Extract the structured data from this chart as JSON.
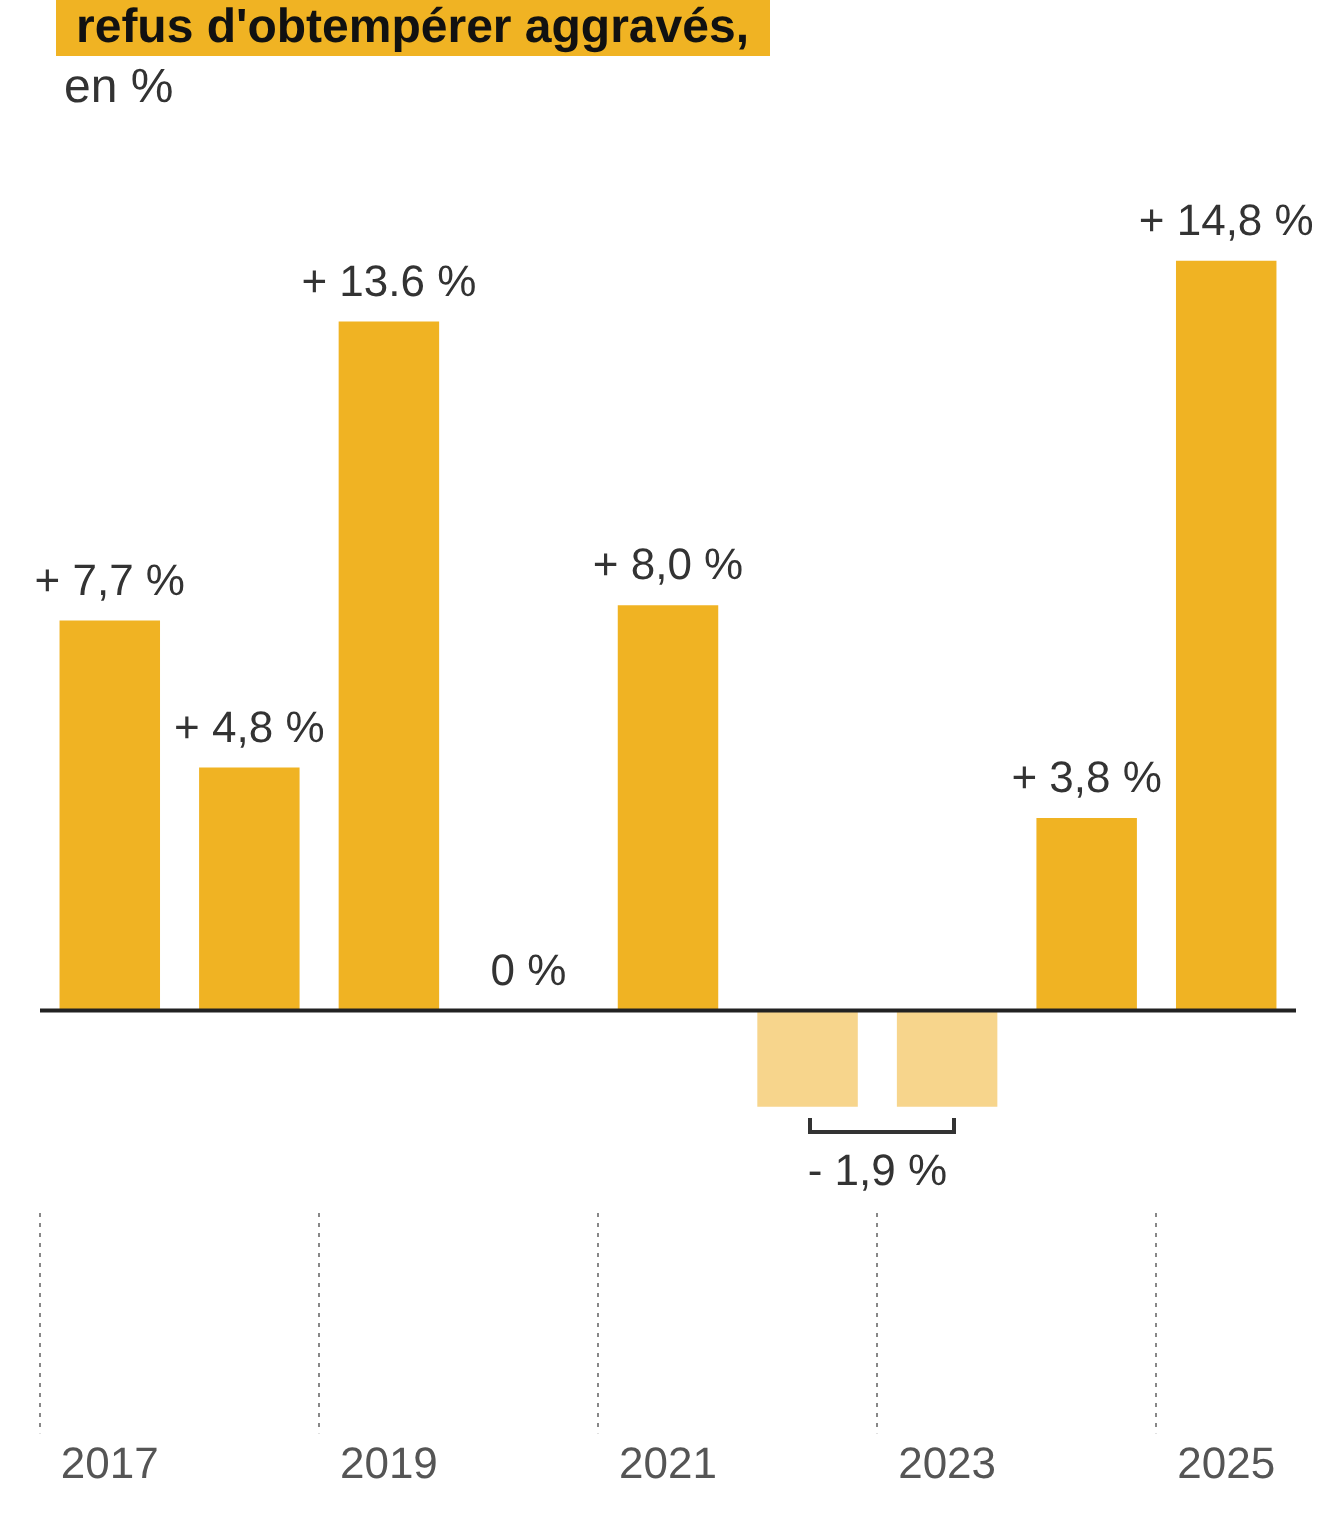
{
  "chart_data": {
    "type": "bar",
    "title": "refus d'obtempérer aggravés,",
    "subtitle": "en %",
    "categories": [
      "2017",
      null,
      "2019",
      null,
      "2021",
      null,
      "2023",
      null,
      "2025"
    ],
    "values": [
      7.7,
      4.8,
      13.6,
      0,
      8.0,
      -1.9,
      -1.9,
      3.8,
      14.8
    ],
    "colors": [
      "#f0b323",
      "#f0b323",
      "#f0b323",
      "#f0b323",
      "#f0b323",
      "#f7d58c",
      "#f7d58c",
      "#f0b323",
      "#f0b323"
    ],
    "value_labels": [
      "+ 7,7 %",
      "+ 4,8 %",
      "+ 13.6 %",
      "0 %",
      "+ 8,0 %",
      "- 1,9 %",
      null,
      "+ 3,8 %",
      "+ 14,8 %"
    ],
    "grid": false,
    "legend": false
  }
}
